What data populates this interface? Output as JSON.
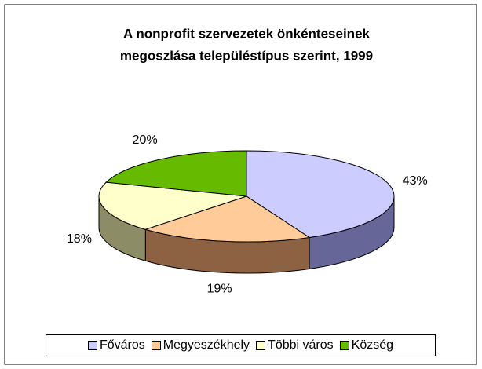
{
  "chart_data": {
    "type": "pie3d",
    "title": [
      "A nonprofit szervezetek önkénteseinek",
      "megoszlása településtípus szerint, 1999"
    ],
    "categories": [
      "Főváros",
      "Megyeszékhely",
      "Többi város",
      "Község"
    ],
    "values": [
      43,
      19,
      18,
      20
    ],
    "value_labels": [
      "43%",
      "19%",
      "18%",
      "20%"
    ],
    "colors": [
      "#ccccff",
      "#ffcc99",
      "#ffffcc",
      "#66bb00"
    ],
    "side_colors": [
      "#666699",
      "#8c6242",
      "#8c8c66",
      "#3d7000"
    ],
    "legend": "bottom"
  }
}
